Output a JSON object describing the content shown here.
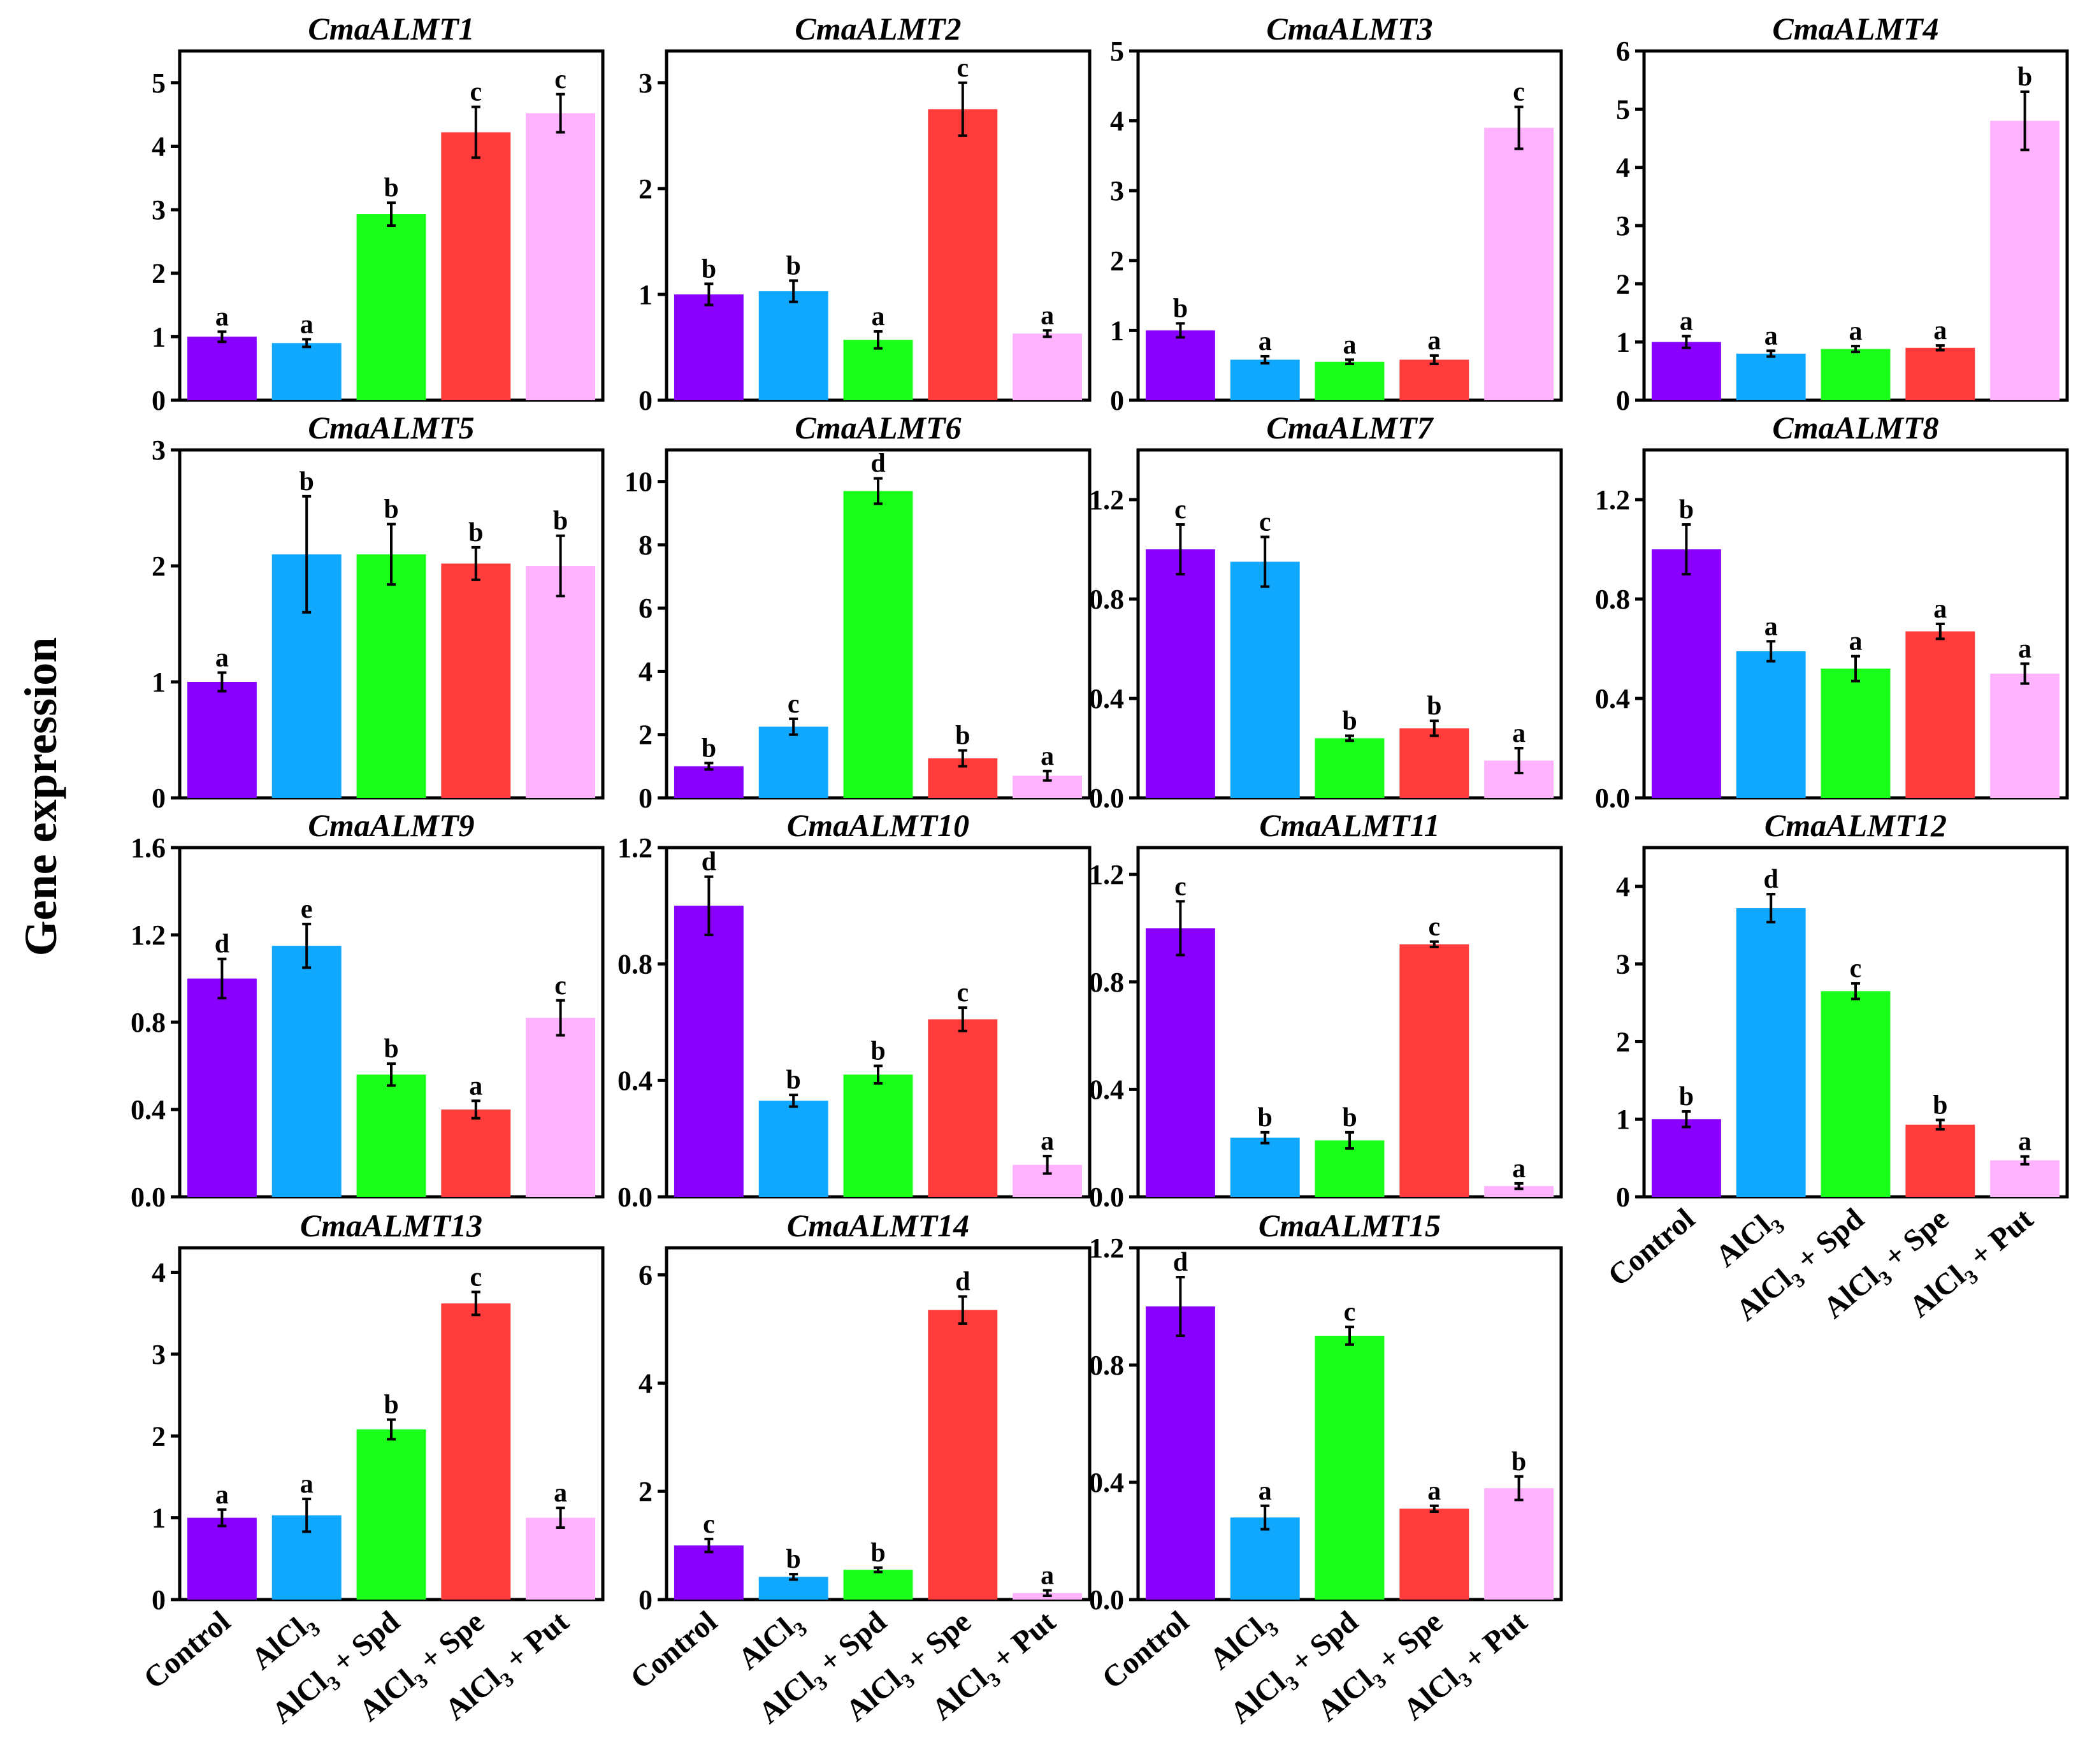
{
  "figure": {
    "ylabel": "Gene expression"
  },
  "x_labels": {
    "plain": [
      "Control",
      "",
      "",
      "",
      ""
    ],
    "cat_main": [
      "Control",
      "AlCl",
      "AlCl",
      "AlCl",
      "AlCl"
    ],
    "cat_sub": [
      "",
      "3",
      "3",
      "3",
      "3"
    ],
    "cat_tail": [
      "",
      "",
      "+ Spd",
      "+ Spe",
      "+ Put"
    ]
  },
  "chart_data": [
    {
      "type": "bar",
      "title": "CmaALMT1",
      "categories": [
        "Control",
        "AlCl3",
        "AlCl3+ Spd",
        "AlCl3 + Spe",
        "AlCl3 + Put"
      ],
      "values": [
        1.0,
        0.9,
        2.93,
        4.22,
        4.52
      ],
      "errors": [
        0.08,
        0.06,
        0.18,
        0.4,
        0.3
      ],
      "letters": [
        "a",
        "a",
        "b",
        "c",
        "c"
      ],
      "ylim": [
        0,
        5.5
      ],
      "yticks": [
        0,
        1,
        2,
        3,
        4,
        5
      ],
      "ytick_labels": [
        "0",
        "1",
        "2",
        "3",
        "4",
        "5"
      ]
    },
    {
      "type": "bar",
      "title": "CmaALMT2",
      "categories": [
        "Control",
        "AlCl3",
        "AlCl3+ Spd",
        "AlCl3 + Spe",
        "AlCl3 + Put"
      ],
      "values": [
        1.0,
        1.03,
        0.57,
        2.75,
        0.63
      ],
      "errors": [
        0.1,
        0.1,
        0.08,
        0.25,
        0.03
      ],
      "letters": [
        "b",
        "b",
        "a",
        "c",
        "a"
      ],
      "ylim": [
        0,
        3.3
      ],
      "yticks": [
        0,
        1,
        2,
        3
      ],
      "ytick_labels": [
        "0",
        "1",
        "2",
        "3"
      ]
    },
    {
      "type": "bar",
      "title": "CmaALMT3",
      "categories": [
        "Control",
        "AlCl3",
        "AlCl3+ Spd",
        "AlCl3 + Spe",
        "AlCl3 + Put"
      ],
      "values": [
        1.0,
        0.58,
        0.55,
        0.58,
        3.9
      ],
      "errors": [
        0.1,
        0.05,
        0.03,
        0.06,
        0.3
      ],
      "letters": [
        "b",
        "a",
        "a",
        "a",
        "c"
      ],
      "ylim": [
        0,
        5
      ],
      "yticks": [
        0,
        1,
        2,
        3,
        4,
        5
      ],
      "ytick_labels": [
        "0",
        "1",
        "2",
        "3",
        "4",
        "5"
      ]
    },
    {
      "type": "bar",
      "title": "CmaALMT4",
      "categories": [
        "Control",
        "AlCl3",
        "AlCl3+ Spd",
        "AlCl3 + Spe",
        "AlCl3 + Put"
      ],
      "values": [
        1.0,
        0.8,
        0.88,
        0.9,
        4.8
      ],
      "errors": [
        0.1,
        0.05,
        0.05,
        0.04,
        0.5
      ],
      "letters": [
        "a",
        "a",
        "a",
        "a",
        "b"
      ],
      "ylim": [
        0,
        6
      ],
      "yticks": [
        0,
        1,
        2,
        3,
        4,
        5,
        6
      ],
      "ytick_labels": [
        "0",
        "1",
        "2",
        "3",
        "4",
        "5",
        "6"
      ]
    },
    {
      "type": "bar",
      "title": "CmaALMT5",
      "categories": [
        "Control",
        "AlCl3",
        "AlCl3+ Spd",
        "AlCl3 + Spe",
        "AlCl3 + Put"
      ],
      "values": [
        1.0,
        2.1,
        2.1,
        2.02,
        2.0
      ],
      "errors": [
        0.08,
        0.5,
        0.26,
        0.14,
        0.26
      ],
      "letters": [
        "a",
        "b",
        "b",
        "b",
        "b"
      ],
      "ylim": [
        0,
        3
      ],
      "yticks": [
        0,
        1,
        2,
        3
      ],
      "ytick_labels": [
        "0",
        "1",
        "2",
        "3"
      ]
    },
    {
      "type": "bar",
      "title": "CmaALMT6",
      "categories": [
        "Control",
        "AlCl3",
        "AlCl3+ Spd",
        "AlCl3 + Spe",
        "AlCl3 + Put"
      ],
      "values": [
        1.0,
        2.25,
        9.7,
        1.25,
        0.7
      ],
      "errors": [
        0.1,
        0.25,
        0.4,
        0.25,
        0.15
      ],
      "letters": [
        "b",
        "c",
        "d",
        "b",
        "a"
      ],
      "ylim": [
        0,
        11
      ],
      "yticks": [
        0,
        2,
        4,
        6,
        8,
        10
      ],
      "ytick_labels": [
        "0",
        "2",
        "4",
        "6",
        "8",
        "10"
      ]
    },
    {
      "type": "bar",
      "title": "CmaALMT7",
      "categories": [
        "Control",
        "AlCl3",
        "AlCl3+ Spd",
        "AlCl3 + Spe",
        "AlCl3 + Put"
      ],
      "values": [
        1.0,
        0.95,
        0.24,
        0.28,
        0.15
      ],
      "errors": [
        0.1,
        0.1,
        0.01,
        0.03,
        0.05
      ],
      "letters": [
        "c",
        "c",
        "b",
        "b",
        "a"
      ],
      "ylim": [
        0,
        1.4
      ],
      "yticks": [
        0,
        0.4,
        0.8,
        1.2
      ],
      "ytick_labels": [
        "0.0",
        "0.4",
        "0.8",
        "1.2"
      ]
    },
    {
      "type": "bar",
      "title": "CmaALMT8",
      "categories": [
        "Control",
        "AlCl3",
        "AlCl3+ Spd",
        "AlCl3 + Spe",
        "AlCl3 + Put"
      ],
      "values": [
        1.0,
        0.59,
        0.52,
        0.67,
        0.5
      ],
      "errors": [
        0.1,
        0.04,
        0.05,
        0.03,
        0.04
      ],
      "letters": [
        "b",
        "a",
        "a",
        "a",
        "a"
      ],
      "ylim": [
        0,
        1.4
      ],
      "yticks": [
        0,
        0.4,
        0.8,
        1.2
      ],
      "ytick_labels": [
        "0.0",
        "0.4",
        "0.8",
        "1.2"
      ]
    },
    {
      "type": "bar",
      "title": "CmaALMT9",
      "categories": [
        "Control",
        "AlCl3",
        "AlCl3+ Spd",
        "AlCl3 + Spe",
        "AlCl3 + Put"
      ],
      "values": [
        1.0,
        1.15,
        0.56,
        0.4,
        0.82
      ],
      "errors": [
        0.09,
        0.1,
        0.05,
        0.04,
        0.08
      ],
      "letters": [
        "d",
        "e",
        "b",
        "a",
        "c"
      ],
      "ylim": [
        0,
        1.6
      ],
      "yticks": [
        0,
        0.4,
        0.8,
        1.2,
        1.6
      ],
      "ytick_labels": [
        "0.0",
        "0.4",
        "0.8",
        "1.2",
        "1.6"
      ]
    },
    {
      "type": "bar",
      "title": "CmaALMT10",
      "categories": [
        "Control",
        "AlCl3",
        "AlCl3+ Spd",
        "AlCl3 + Spe",
        "AlCl3 + Put"
      ],
      "values": [
        1.0,
        0.33,
        0.42,
        0.61,
        0.11
      ],
      "errors": [
        0.1,
        0.02,
        0.03,
        0.04,
        0.03
      ],
      "letters": [
        "d",
        "b",
        "b",
        "c",
        "a"
      ],
      "ylim": [
        0,
        1.2
      ],
      "yticks": [
        0,
        0.4,
        0.8,
        1.2
      ],
      "ytick_labels": [
        "0.0",
        "0.4",
        "0.8",
        "1.2"
      ]
    },
    {
      "type": "bar",
      "title": "CmaALMT11",
      "categories": [
        "Control",
        "AlCl3",
        "AlCl3+ Spd",
        "AlCl3 + Spe",
        "AlCl3 + Put"
      ],
      "values": [
        1.0,
        0.22,
        0.21,
        0.94,
        0.04
      ],
      "errors": [
        0.1,
        0.02,
        0.03,
        0.01,
        0.01
      ],
      "letters": [
        "c",
        "b",
        "b",
        "c",
        "a"
      ],
      "ylim": [
        0,
        1.3
      ],
      "yticks": [
        0,
        0.4,
        0.8,
        1.2
      ],
      "ytick_labels": [
        "0.0",
        "0.4",
        "0.8",
        "1.2"
      ]
    },
    {
      "type": "bar",
      "title": "CmaALMT12",
      "categories": [
        "Control",
        "AlCl3",
        "AlCl3+ Spd",
        "AlCl3 + Spe",
        "AlCl3 + Put"
      ],
      "values": [
        1.0,
        3.72,
        2.65,
        0.93,
        0.47
      ],
      "errors": [
        0.1,
        0.18,
        0.1,
        0.06,
        0.05
      ],
      "letters": [
        "b",
        "d",
        "c",
        "b",
        "a"
      ],
      "ylim": [
        0,
        4.5
      ],
      "yticks": [
        0,
        1,
        2,
        3,
        4
      ],
      "ytick_labels": [
        "0",
        "1",
        "2",
        "3",
        "4"
      ]
    },
    {
      "type": "bar",
      "title": "CmaALMT13",
      "categories": [
        "Control",
        "AlCl3",
        "AlCl3+ Spd",
        "AlCl3 + Spe",
        "AlCl3 + Put"
      ],
      "values": [
        1.0,
        1.03,
        2.08,
        3.62,
        1.0
      ],
      "errors": [
        0.1,
        0.2,
        0.12,
        0.14,
        0.12
      ],
      "letters": [
        "a",
        "a",
        "b",
        "c",
        "a"
      ],
      "ylim": [
        0,
        4.3
      ],
      "yticks": [
        0,
        1,
        2,
        3,
        4
      ],
      "ytick_labels": [
        "0",
        "1",
        "2",
        "3",
        "4"
      ]
    },
    {
      "type": "bar",
      "title": "CmaALMT14",
      "categories": [
        "Control",
        "AlCl3",
        "AlCl3+ Spd",
        "AlCl3 + Spe",
        "AlCl3 + Put"
      ],
      "values": [
        1.0,
        0.42,
        0.55,
        5.35,
        0.12
      ],
      "errors": [
        0.12,
        0.05,
        0.04,
        0.25,
        0.05
      ],
      "letters": [
        "c",
        "b",
        "b",
        "d",
        "a"
      ],
      "ylim": [
        0,
        6.5
      ],
      "yticks": [
        0,
        2,
        4,
        6
      ],
      "ytick_labels": [
        "0",
        "2",
        "4",
        "6"
      ]
    },
    {
      "type": "bar",
      "title": "CmaALMT15",
      "categories": [
        "Control",
        "AlCl3",
        "AlCl3+ Spd",
        "AlCl3 + Spe",
        "AlCl3 + Put"
      ],
      "values": [
        1.0,
        0.28,
        0.9,
        0.31,
        0.38
      ],
      "errors": [
        0.1,
        0.04,
        0.03,
        0.01,
        0.04
      ],
      "letters": [
        "d",
        "a",
        "c",
        "a",
        "b"
      ],
      "ylim": [
        0,
        1.2
      ],
      "yticks": [
        0,
        0.4,
        0.8,
        1.2
      ],
      "ytick_labels": [
        "0.0",
        "0.4",
        "0.8",
        "1.2"
      ]
    }
  ],
  "colors": [
    "#8a00ff",
    "#10a8ff",
    "#19ff19",
    "#ff3b3b",
    "#ffb3ff"
  ]
}
